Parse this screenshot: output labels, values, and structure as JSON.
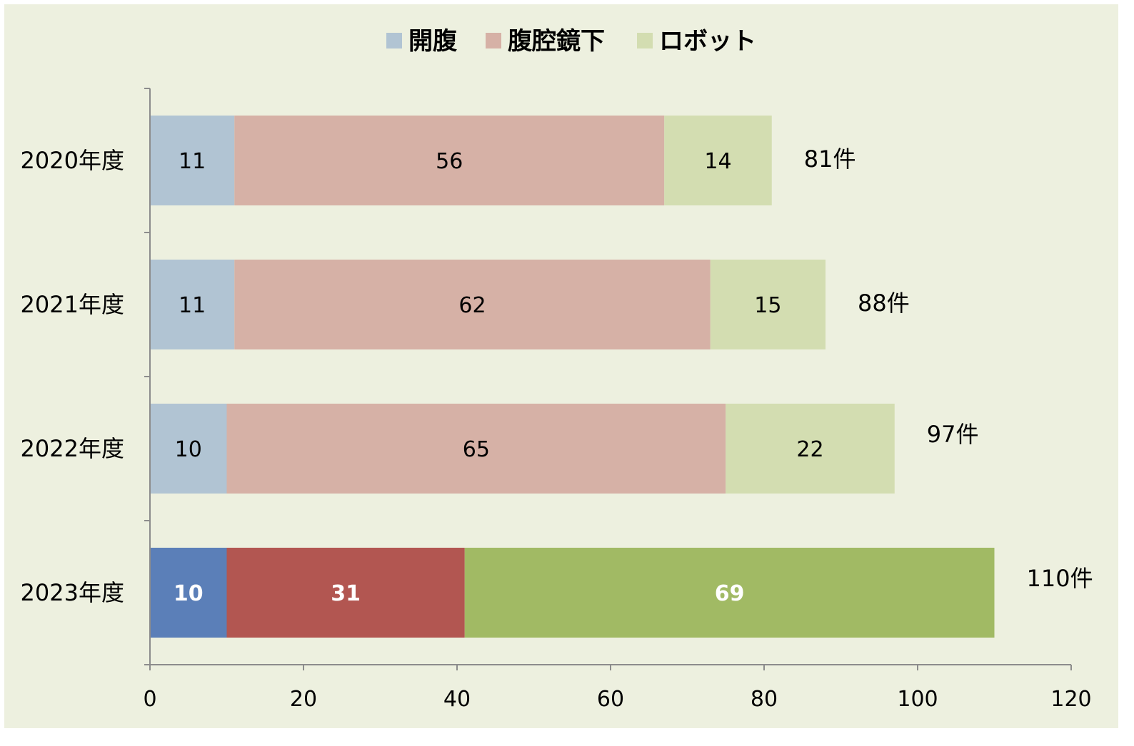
{
  "chart_data": {
    "type": "bar",
    "orientation": "horizontal",
    "stacked": true,
    "categories": [
      "2020年度",
      "2021年度",
      "2022年度",
      "2023年度"
    ],
    "series": [
      {
        "name": "開腹",
        "values": [
          11,
          11,
          10,
          10
        ],
        "color": "#b1c4d3",
        "highlight_color": "#5b7fb8"
      },
      {
        "name": "腹腔鏡下",
        "values": [
          56,
          62,
          65,
          31
        ],
        "color": "#d6b1a6",
        "highlight_color": "#b25651"
      },
      {
        "name": "ロボット",
        "values": [
          14,
          15,
          22,
          69
        ],
        "color": "#d3ddb1",
        "highlight_color": "#a1ba64"
      }
    ],
    "totals": [
      "81件",
      "88件",
      "97件",
      "110件"
    ],
    "highlighted_category": "2023年度",
    "xlim": [
      0,
      120
    ],
    "xticks": [
      0,
      20,
      40,
      60,
      80,
      100,
      120
    ],
    "legend_position": "top",
    "grid": false,
    "background_color": "#edf0df",
    "title": "",
    "xlabel": "",
    "ylabel": ""
  }
}
